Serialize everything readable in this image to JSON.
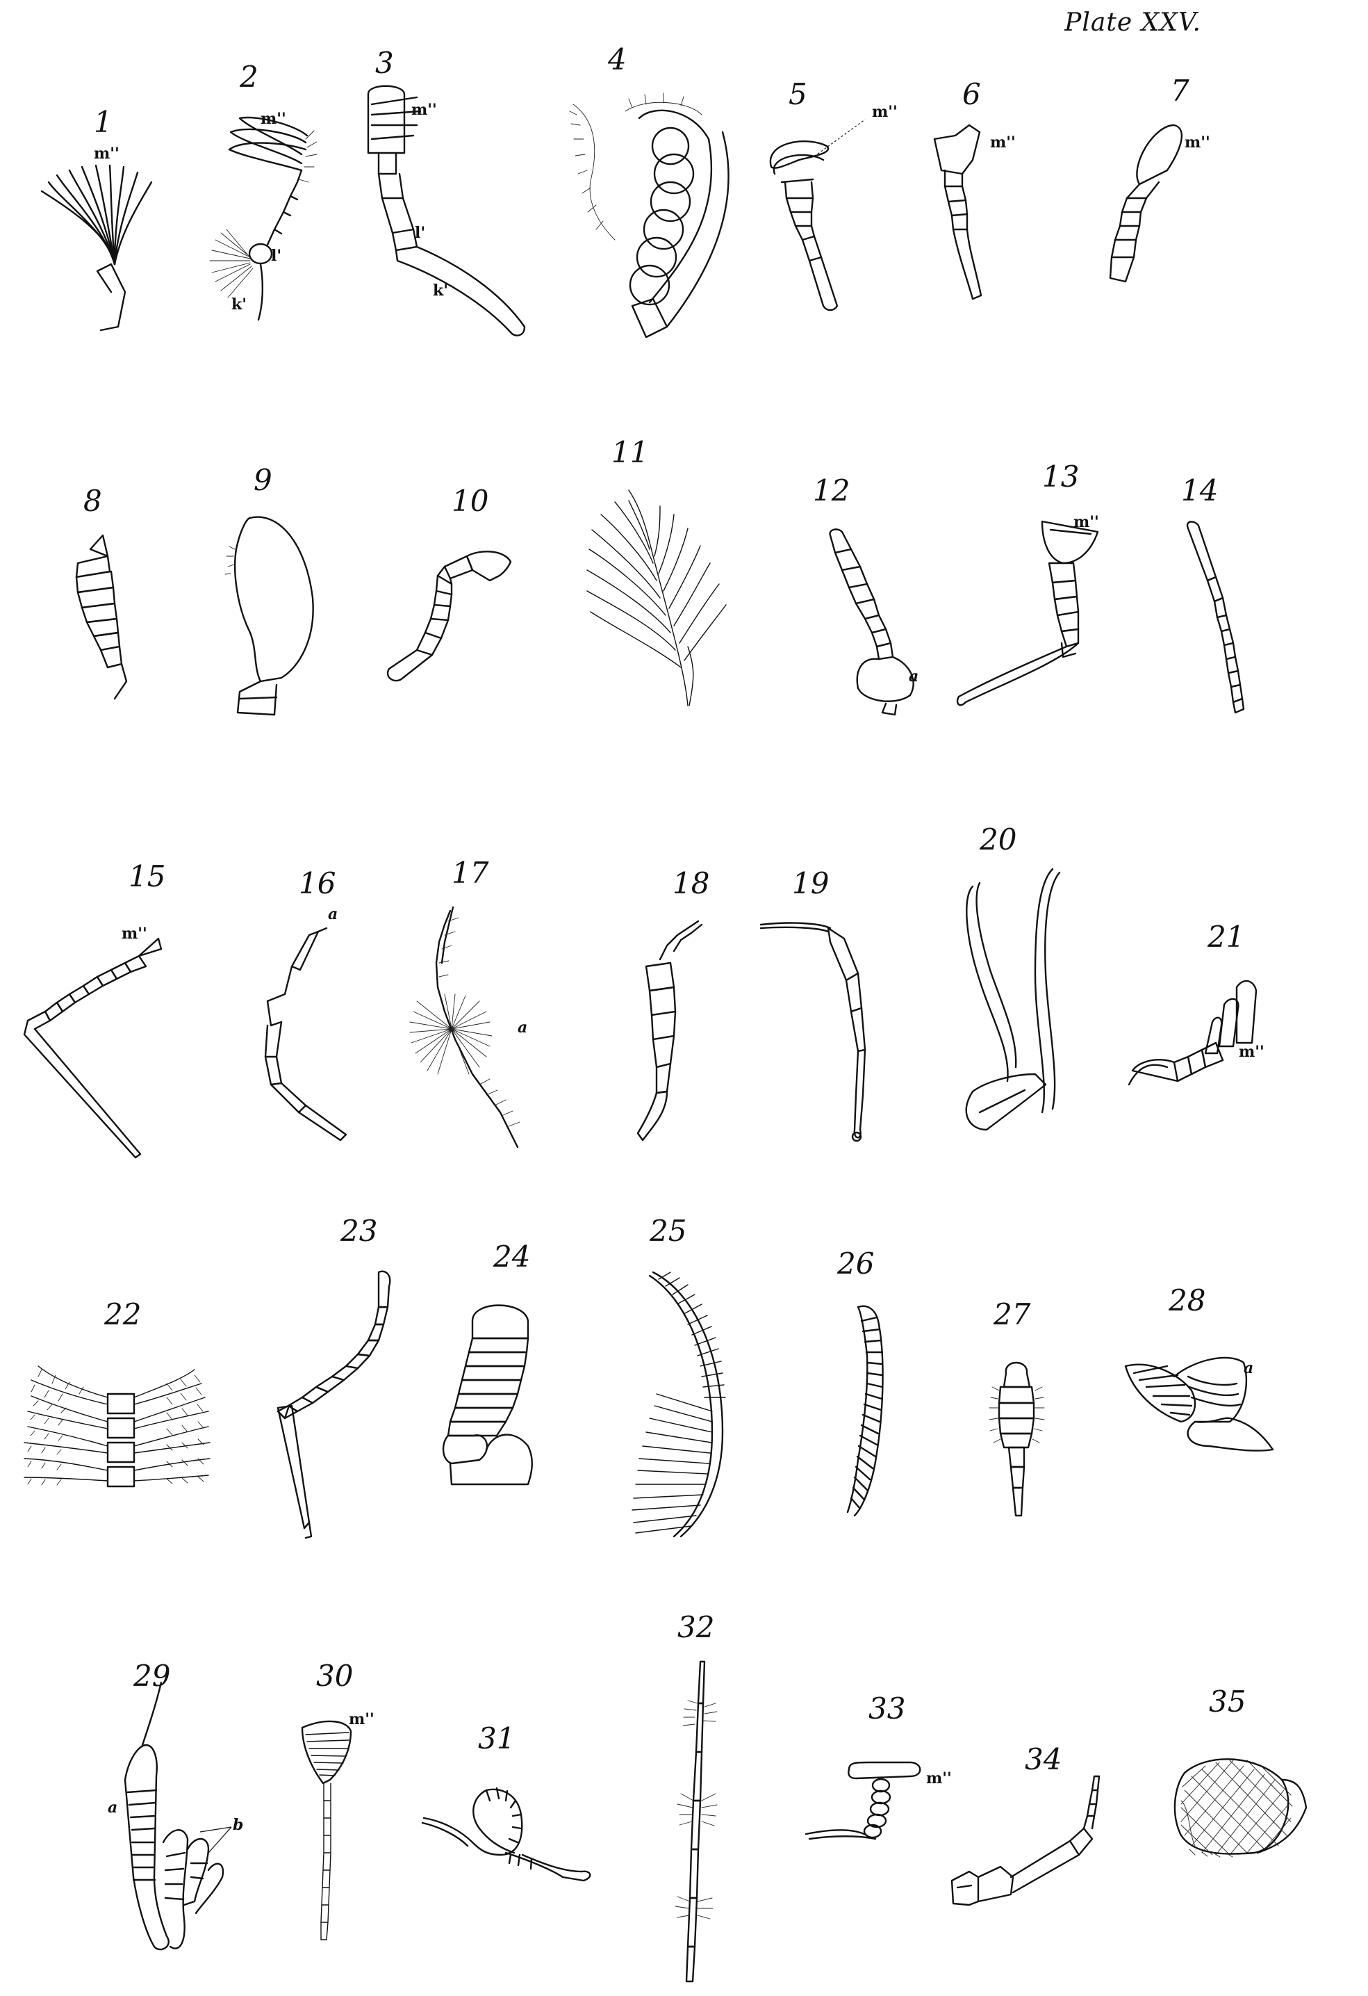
{
  "plate": {
    "title": "Plate XXV."
  },
  "figures": [
    {
      "id": 1,
      "number": "1",
      "labels": [
        "m''"
      ]
    },
    {
      "id": 2,
      "number": "2",
      "labels": [
        "m''",
        "l'",
        "k'"
      ]
    },
    {
      "id": 3,
      "number": "3",
      "labels": [
        "m''",
        "l'",
        "k'"
      ]
    },
    {
      "id": 4,
      "number": "4",
      "labels": []
    },
    {
      "id": 5,
      "number": "5",
      "labels": [
        "m''"
      ]
    },
    {
      "id": 6,
      "number": "6",
      "labels": [
        "m''"
      ]
    },
    {
      "id": 7,
      "number": "7",
      "labels": [
        "m''"
      ]
    },
    {
      "id": 8,
      "number": "8",
      "labels": []
    },
    {
      "id": 9,
      "number": "9",
      "labels": []
    },
    {
      "id": 10,
      "number": "10",
      "labels": []
    },
    {
      "id": 11,
      "number": "11",
      "labels": []
    },
    {
      "id": 12,
      "number": "12",
      "labels": [
        "a"
      ]
    },
    {
      "id": 13,
      "number": "13",
      "labels": [
        "m''"
      ]
    },
    {
      "id": 14,
      "number": "14",
      "labels": []
    },
    {
      "id": 15,
      "number": "15",
      "labels": [
        "m''"
      ]
    },
    {
      "id": 16,
      "number": "16",
      "labels": [
        "a"
      ]
    },
    {
      "id": 17,
      "number": "17",
      "labels": [
        "a"
      ]
    },
    {
      "id": 18,
      "number": "18",
      "labels": []
    },
    {
      "id": 19,
      "number": "19",
      "labels": []
    },
    {
      "id": 20,
      "number": "20",
      "labels": []
    },
    {
      "id": 21,
      "number": "21",
      "labels": [
        "m''"
      ]
    },
    {
      "id": 22,
      "number": "22",
      "labels": []
    },
    {
      "id": 23,
      "number": "23",
      "labels": []
    },
    {
      "id": 24,
      "number": "24",
      "labels": []
    },
    {
      "id": 25,
      "number": "25",
      "labels": []
    },
    {
      "id": 26,
      "number": "26",
      "labels": []
    },
    {
      "id": 27,
      "number": "27",
      "labels": []
    },
    {
      "id": 28,
      "number": "28",
      "labels": [
        "a"
      ]
    },
    {
      "id": 29,
      "number": "29",
      "labels": [
        "a",
        "b"
      ]
    },
    {
      "id": 30,
      "number": "30",
      "labels": [
        "m''"
      ]
    },
    {
      "id": 31,
      "number": "31",
      "labels": []
    },
    {
      "id": 32,
      "number": "32",
      "labels": []
    },
    {
      "id": 33,
      "number": "33",
      "labels": [
        "m''"
      ]
    },
    {
      "id": 34,
      "number": "34",
      "labels": []
    },
    {
      "id": 35,
      "number": "35",
      "labels": []
    }
  ],
  "colors": {
    "ink": "#111111",
    "paper": "#ffffff"
  }
}
